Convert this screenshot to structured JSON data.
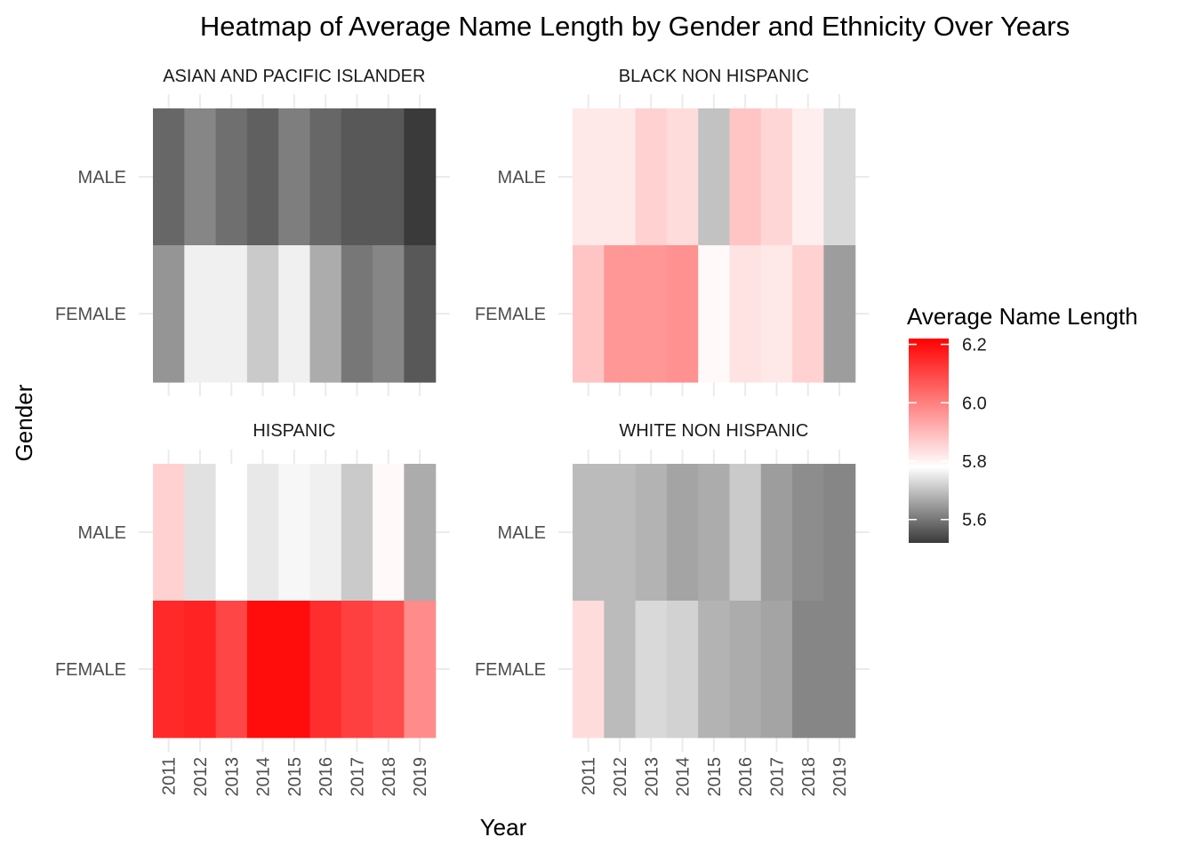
{
  "chart_data": {
    "type": "heatmap",
    "title": "Heatmap of Average Name Length by Gender and Ethnicity Over Years",
    "xlabel": "Year",
    "ylabel": "Gender",
    "x": [
      "2011",
      "2012",
      "2013",
      "2014",
      "2015",
      "2016",
      "2017",
      "2018",
      "2019"
    ],
    "y": [
      "MALE",
      "FEMALE"
    ],
    "color_scale": {
      "title": "Average Name Length",
      "low": 5.52,
      "mid": 5.78,
      "high": 6.22,
      "low_color": "#3a3a3a",
      "mid_color": "#ffffff",
      "high_color": "#ff0000",
      "ticks": [
        "6.2",
        "6.0",
        "5.8",
        "5.6"
      ],
      "tick_values": [
        6.2,
        6.0,
        5.8,
        5.6
      ]
    },
    "grid": true,
    "legend_position": "right",
    "panels": [
      {
        "name": "ASIAN AND PACIFIC ISLANDER",
        "values": {
          "MALE": [
            5.58,
            5.62,
            5.59,
            5.57,
            5.61,
            5.58,
            5.56,
            5.56,
            5.52
          ],
          "FEMALE": [
            5.64,
            5.76,
            5.76,
            5.71,
            5.76,
            5.67,
            5.6,
            5.62,
            5.56
          ]
        }
      },
      {
        "name": "BLACK NON HISPANIC",
        "values": {
          "MALE": [
            5.82,
            5.82,
            5.86,
            5.84,
            5.7,
            5.88,
            5.85,
            5.81,
            5.73
          ],
          "FEMALE": [
            5.88,
            5.96,
            5.96,
            5.97,
            5.79,
            5.83,
            5.82,
            5.86,
            5.65
          ]
        }
      },
      {
        "name": "HISPANIC",
        "values": {
          "MALE": [
            5.86,
            5.74,
            5.78,
            5.75,
            5.77,
            5.76,
            5.71,
            5.79,
            5.67
          ],
          "FEMALE": [
            6.15,
            6.16,
            6.1,
            6.2,
            6.2,
            6.14,
            6.11,
            6.09,
            5.98
          ]
        }
      },
      {
        "name": "WHITE NON HISPANIC",
        "values": {
          "MALE": [
            5.69,
            5.69,
            5.68,
            5.66,
            5.67,
            5.71,
            5.65,
            5.63,
            5.62
          ],
          "FEMALE": [
            5.84,
            5.69,
            5.73,
            5.72,
            5.68,
            5.67,
            5.66,
            5.62,
            5.62
          ]
        }
      }
    ]
  }
}
